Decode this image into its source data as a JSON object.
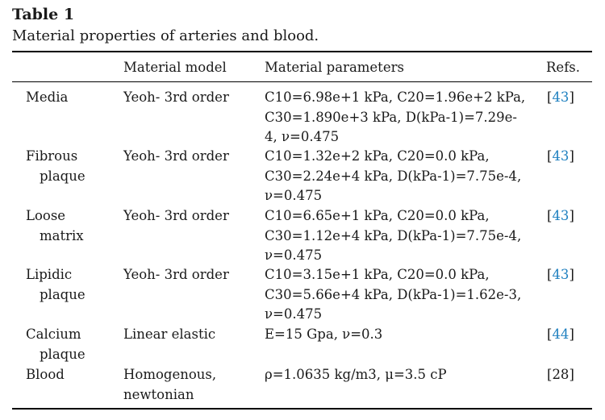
{
  "table": {
    "label": "Table 1",
    "caption": "Material properties of arteries and blood.",
    "headers": [
      "",
      "Material model",
      "Material parameters",
      "Refs."
    ],
    "rows": [
      {
        "name_l1": "Media",
        "name_l2": "",
        "model_l1": "Yeoh- 3rd order",
        "model_l2": "",
        "params": [
          "C10=6.98e+1 kPa, C20=1.96e+2 kPa,",
          "C30=1.890e+3 kPa, D(kPa-1)=7.29e-",
          "4, ν=0.475"
        ],
        "ref": "43",
        "ref_linked": true
      },
      {
        "name_l1": "Fibrous",
        "name_l2": "plaque",
        "model_l1": "Yeoh- 3rd order",
        "model_l2": "",
        "params": [
          "C10=1.32e+2 kPa, C20=0.0 kPa,",
          "C30=2.24e+4 kPa, D(kPa-1)=7.75e-4,",
          "ν=0.475"
        ],
        "ref": "43",
        "ref_linked": true
      },
      {
        "name_l1": "Loose",
        "name_l2": "matrix",
        "model_l1": "Yeoh- 3rd order",
        "model_l2": "",
        "params": [
          "C10=6.65e+1 kPa, C20=0.0 kPa,",
          "C30=1.12e+4 kPa, D(kPa-1)=7.75e-4,",
          "ν=0.475"
        ],
        "ref": "43",
        "ref_linked": true
      },
      {
        "name_l1": "Lipidic",
        "name_l2": "plaque",
        "model_l1": "Yeoh- 3rd order",
        "model_l2": "",
        "params": [
          "C10=3.15e+1 kPa, C20=0.0 kPa,",
          "C30=5.66e+4 kPa, D(kPa-1)=1.62e-3,",
          "ν=0.475"
        ],
        "ref": "43",
        "ref_linked": true
      },
      {
        "name_l1": "Calcium",
        "name_l2": "plaque",
        "model_l1": "Linear elastic",
        "model_l2": "",
        "params": [
          "E=15 Gpa, ν=0.3",
          "",
          ""
        ],
        "ref": "44",
        "ref_linked": true
      },
      {
        "name_l1": "Blood",
        "name_l2": "",
        "model_l1": "Homogenous,",
        "model_l2": "newtonian",
        "params": [
          "ρ=1.0635 kg/m3, μ=3.5 cP",
          "",
          ""
        ],
        "ref": "28",
        "ref_linked": false
      }
    ]
  }
}
